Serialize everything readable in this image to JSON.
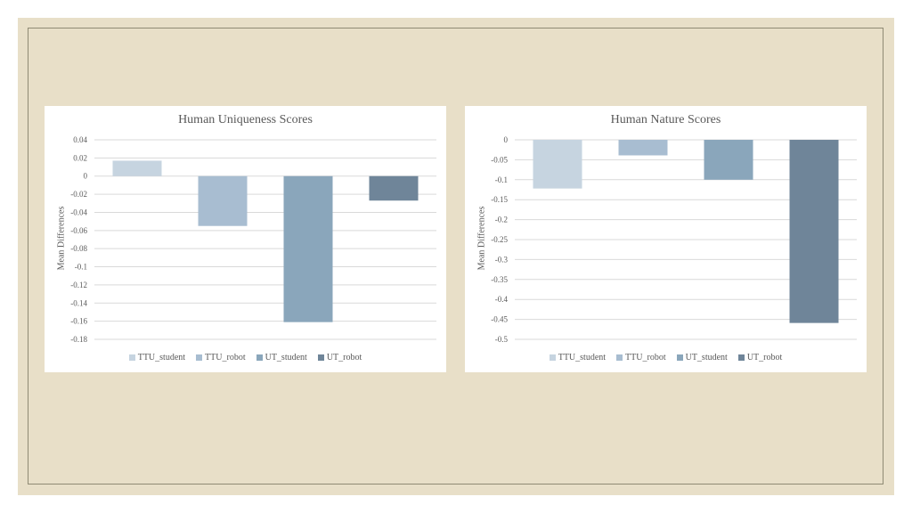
{
  "chart_data": [
    {
      "type": "bar",
      "title": "Human Uniqueness Scores",
      "ylabel": "Mean Differences",
      "xlabel": "",
      "categories": [
        "TTU_student",
        "TTU_robot",
        "UT_student",
        "UT_robot"
      ],
      "values": [
        0.017,
        -0.055,
        -0.161,
        -0.027
      ],
      "ylim": [
        -0.18,
        0.04
      ],
      "yticks": [
        0.04,
        0.02,
        0,
        -0.02,
        -0.04,
        -0.06,
        -0.08,
        -0.1,
        -0.12,
        -0.14,
        -0.16,
        -0.18
      ],
      "ytick_labels": [
        "0.04",
        "0.02",
        "0",
        "-0.02",
        "-0.04",
        "-0.06",
        "-0.08",
        "-0.1",
        "-0.12",
        "-0.14",
        "-0.16",
        "-0.18"
      ],
      "colors": [
        "#c6d4e0",
        "#a8bdd1",
        "#8aa6bb",
        "#6f8599"
      ],
      "grid": true,
      "legend": "bottom"
    },
    {
      "type": "bar",
      "title": "Human Nature Scores",
      "ylabel": "Mean Differences",
      "xlabel": "",
      "categories": [
        "TTU_student",
        "TTU_robot",
        "UT_student",
        "UT_robot"
      ],
      "values": [
        -0.122,
        -0.039,
        -0.1,
        -0.459
      ],
      "ylim": [
        -0.5,
        0
      ],
      "yticks": [
        0,
        -0.05,
        -0.1,
        -0.15,
        -0.2,
        -0.25,
        -0.3,
        -0.35,
        -0.4,
        -0.45,
        -0.5
      ],
      "ytick_labels": [
        "0",
        "-0.05",
        "-0.1",
        "-0.15",
        "-0.2",
        "-0.25",
        "-0.3",
        "-0.35",
        "-0.4",
        "-0.45",
        "-0.5"
      ],
      "colors": [
        "#c6d4e0",
        "#a8bdd1",
        "#8aa6bb",
        "#6f8599"
      ],
      "grid": true,
      "legend": "bottom"
    }
  ]
}
